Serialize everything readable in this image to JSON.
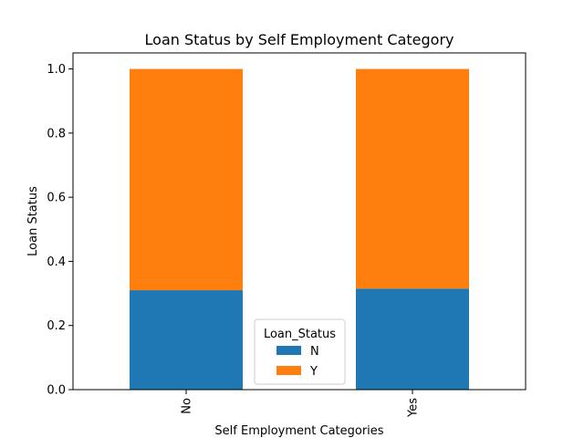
{
  "chart_data": {
    "type": "bar",
    "stacked": true,
    "title": "Loan Status by Self Employment Category",
    "xlabel": "Self Employment Categories",
    "ylabel": "Loan Status",
    "categories": [
      "No",
      "Yes"
    ],
    "series": [
      {
        "name": "N",
        "values": [
          0.31,
          0.315
        ],
        "color": "#1f77b4"
      },
      {
        "name": "Y",
        "values": [
          0.69,
          0.685
        ],
        "color": "#ff7f0e"
      }
    ],
    "ylim": [
      0,
      1.05
    ],
    "yticks": [
      "0.0",
      "0.2",
      "0.4",
      "0.6",
      "0.8",
      "1.0"
    ],
    "grid": false,
    "legend": {
      "title": "Loan_Status",
      "placement": "bottom-center"
    },
    "xtick_rotation": "vertical"
  }
}
